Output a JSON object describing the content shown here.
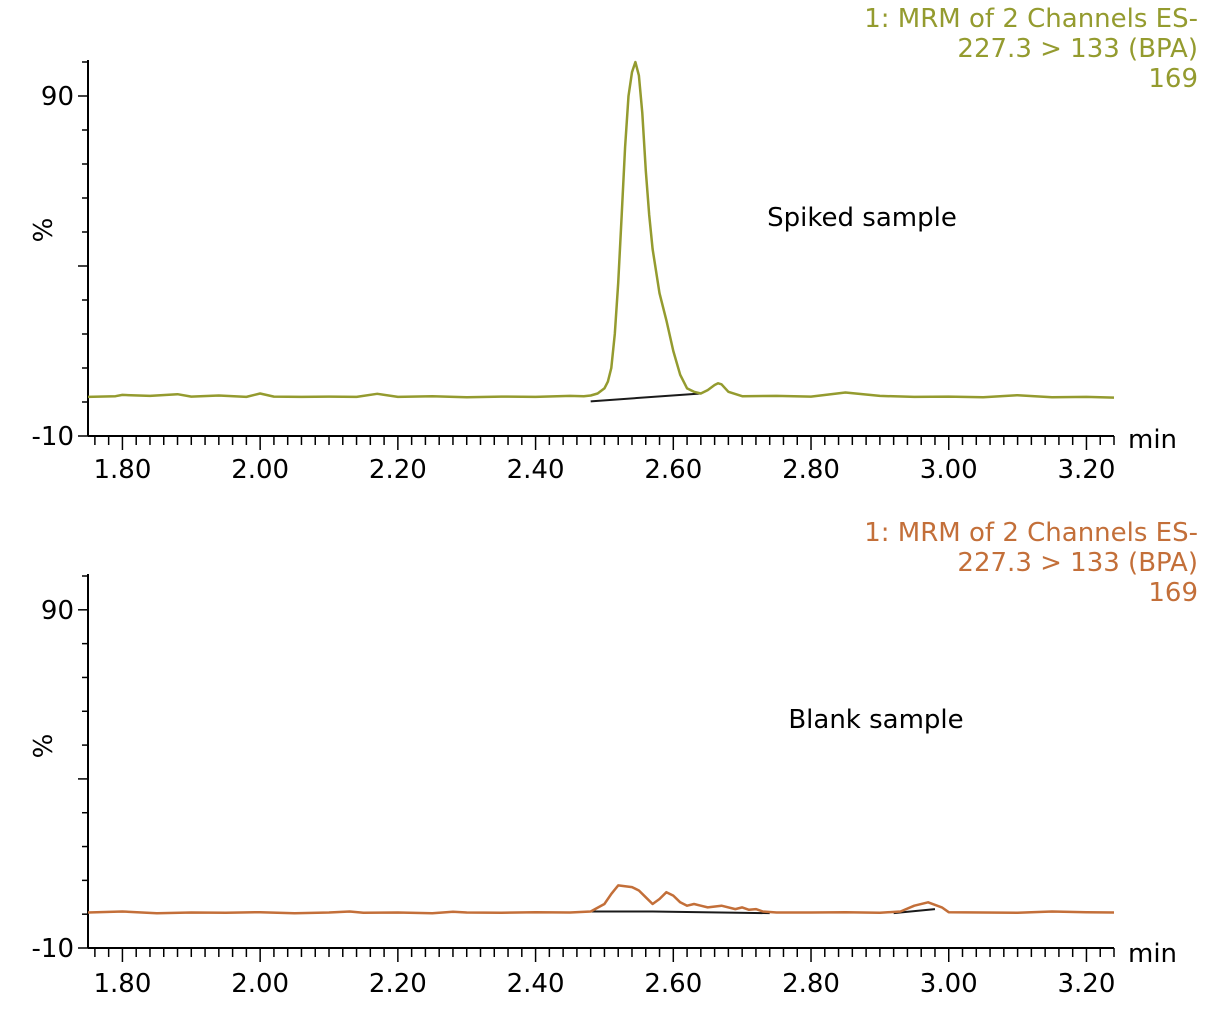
{
  "chart_data": [
    {
      "type": "line",
      "color": "#949b2f",
      "header": [
        "1: MRM of 2 Channels ES-",
        "227.3 > 133 (BPA)",
        "169"
      ],
      "annotation": "Spiked sample",
      "ylabel": "%",
      "xunit": "min",
      "xlim": [
        1.75,
        3.24
      ],
      "ylim": [
        -10,
        100
      ],
      "yticks": [
        90,
        -10
      ],
      "xticks": [
        "1.80",
        "2.00",
        "2.20",
        "2.40",
        "2.60",
        "2.80",
        "3.00",
        "3.20"
      ],
      "series": [
        {
          "x": [
            1.75,
            1.79,
            1.8,
            1.84,
            1.88,
            1.9,
            1.94,
            1.98,
            2.0,
            2.02,
            2.06,
            2.1,
            2.14,
            2.17,
            2.2,
            2.25,
            2.3,
            2.35,
            2.4,
            2.45,
            2.47,
            2.48,
            2.49,
            2.5,
            2.505,
            2.51,
            2.515,
            2.52,
            2.525,
            2.53,
            2.535,
            2.54,
            2.545,
            2.55,
            2.555,
            2.56,
            2.565,
            2.57,
            2.58,
            2.59,
            2.6,
            2.61,
            2.62,
            2.63,
            2.64,
            2.65,
            2.66,
            2.665,
            2.67,
            2.68,
            2.7,
            2.75,
            2.8,
            2.85,
            2.9,
            2.95,
            3.0,
            3.05,
            3.1,
            3.15,
            3.2,
            3.24
          ],
          "y": [
            1.5,
            1.7,
            2.1,
            1.8,
            2.3,
            1.6,
            1.9,
            1.5,
            2.5,
            1.6,
            1.5,
            1.6,
            1.5,
            2.4,
            1.5,
            1.7,
            1.4,
            1.6,
            1.5,
            1.8,
            1.7,
            1.9,
            2.5,
            4.0,
            6.0,
            10.0,
            20.0,
            35.0,
            55.0,
            75.0,
            90.0,
            97.0,
            100.0,
            96.0,
            85.0,
            68.0,
            55.0,
            45.0,
            32.0,
            24.0,
            15.0,
            8.0,
            4.0,
            3.0,
            2.5,
            3.5,
            5.0,
            5.5,
            5.2,
            3.0,
            1.7,
            1.8,
            1.6,
            2.8,
            1.8,
            1.5,
            1.6,
            1.4,
            2.0,
            1.4,
            1.5,
            1.3
          ]
        }
      ]
    },
    {
      "type": "line",
      "color": "#c36f39",
      "header": [
        "1: MRM of 2 Channels ES-",
        "227.3 > 133 (BPA)",
        "169"
      ],
      "annotation": "Blank sample",
      "ylabel": "%",
      "xunit": "min",
      "xlim": [
        1.75,
        3.24
      ],
      "ylim": [
        -10,
        100
      ],
      "yticks": [
        90,
        -10
      ],
      "xticks": [
        "1.80",
        "2.00",
        "2.20",
        "2.40",
        "2.60",
        "2.80",
        "3.00",
        "3.20"
      ],
      "series": [
        {
          "x": [
            1.75,
            1.8,
            1.85,
            1.9,
            1.95,
            2.0,
            2.05,
            2.1,
            2.13,
            2.15,
            2.2,
            2.25,
            2.28,
            2.3,
            2.35,
            2.4,
            2.45,
            2.48,
            2.5,
            2.51,
            2.52,
            2.54,
            2.55,
            2.56,
            2.57,
            2.58,
            2.59,
            2.6,
            2.61,
            2.62,
            2.63,
            2.64,
            2.65,
            2.67,
            2.69,
            2.7,
            2.71,
            2.72,
            2.73,
            2.75,
            2.8,
            2.85,
            2.9,
            2.93,
            2.95,
            2.97,
            2.99,
            3.0,
            3.05,
            3.1,
            3.15,
            3.2,
            3.24
          ],
          "y": [
            0.5,
            0.8,
            0.3,
            0.5,
            0.4,
            0.6,
            0.3,
            0.5,
            0.8,
            0.4,
            0.5,
            0.3,
            0.7,
            0.5,
            0.4,
            0.6,
            0.5,
            0.8,
            3.0,
            6.0,
            8.5,
            8.0,
            7.0,
            5.0,
            3.0,
            4.5,
            6.5,
            5.5,
            3.5,
            2.5,
            3.0,
            2.5,
            2.0,
            2.5,
            1.5,
            2.0,
            1.3,
            1.5,
            0.8,
            0.5,
            0.5,
            0.6,
            0.4,
            0.8,
            2.5,
            3.5,
            2.0,
            0.6,
            0.5,
            0.4,
            0.8,
            0.6,
            0.5
          ]
        }
      ]
    }
  ]
}
